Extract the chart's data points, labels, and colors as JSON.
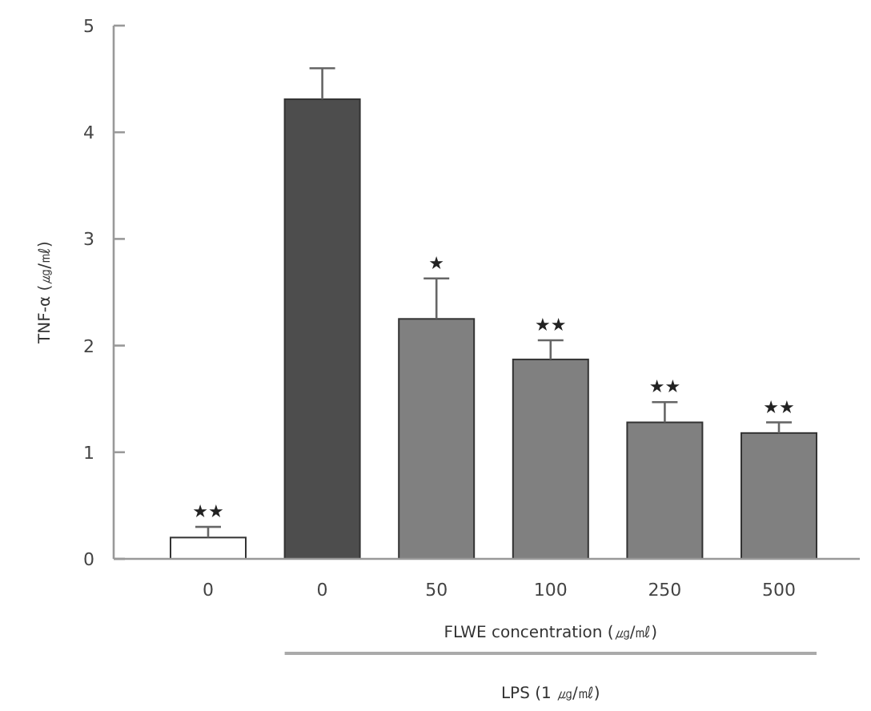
{
  "chart_data": {
    "type": "bar",
    "ylabel": "TNF-α (㎍/㎖)",
    "xlabel": "FLWE concentration (㎍/㎖)",
    "categories": [
      "0",
      "0",
      "50",
      "100",
      "250",
      "500"
    ],
    "values": [
      0.2,
      4.31,
      2.25,
      1.87,
      1.28,
      1.18
    ],
    "errors": [
      [
        0.2,
        0.3
      ],
      [
        4.31,
        4.6
      ],
      [
        2.25,
        2.63
      ],
      [
        1.87,
        2.05
      ],
      [
        1.28,
        1.47
      ],
      [
        1.18,
        1.28
      ]
    ],
    "colors": [
      "#ffffff",
      "#4d4d4d",
      "#808080",
      "#808080",
      "#808080",
      "#808080"
    ],
    "ylim": [
      0,
      5
    ],
    "yticks": [
      0,
      1,
      2,
      3,
      4,
      5
    ],
    "annotations": [
      {
        "text": "★★",
        "x": "0",
        "y": 0.3
      },
      {
        "text": "★",
        "x": "50",
        "y": 2.63
      },
      {
        "text": "★★",
        "x": "100",
        "y": 2.05
      },
      {
        "text": "★★",
        "x": "250",
        "y": 1.47
      },
      {
        "text": "★★",
        "x": "500",
        "y": 1.28
      },
      "LPS (1 ㎍/㎖)"
    ]
  }
}
